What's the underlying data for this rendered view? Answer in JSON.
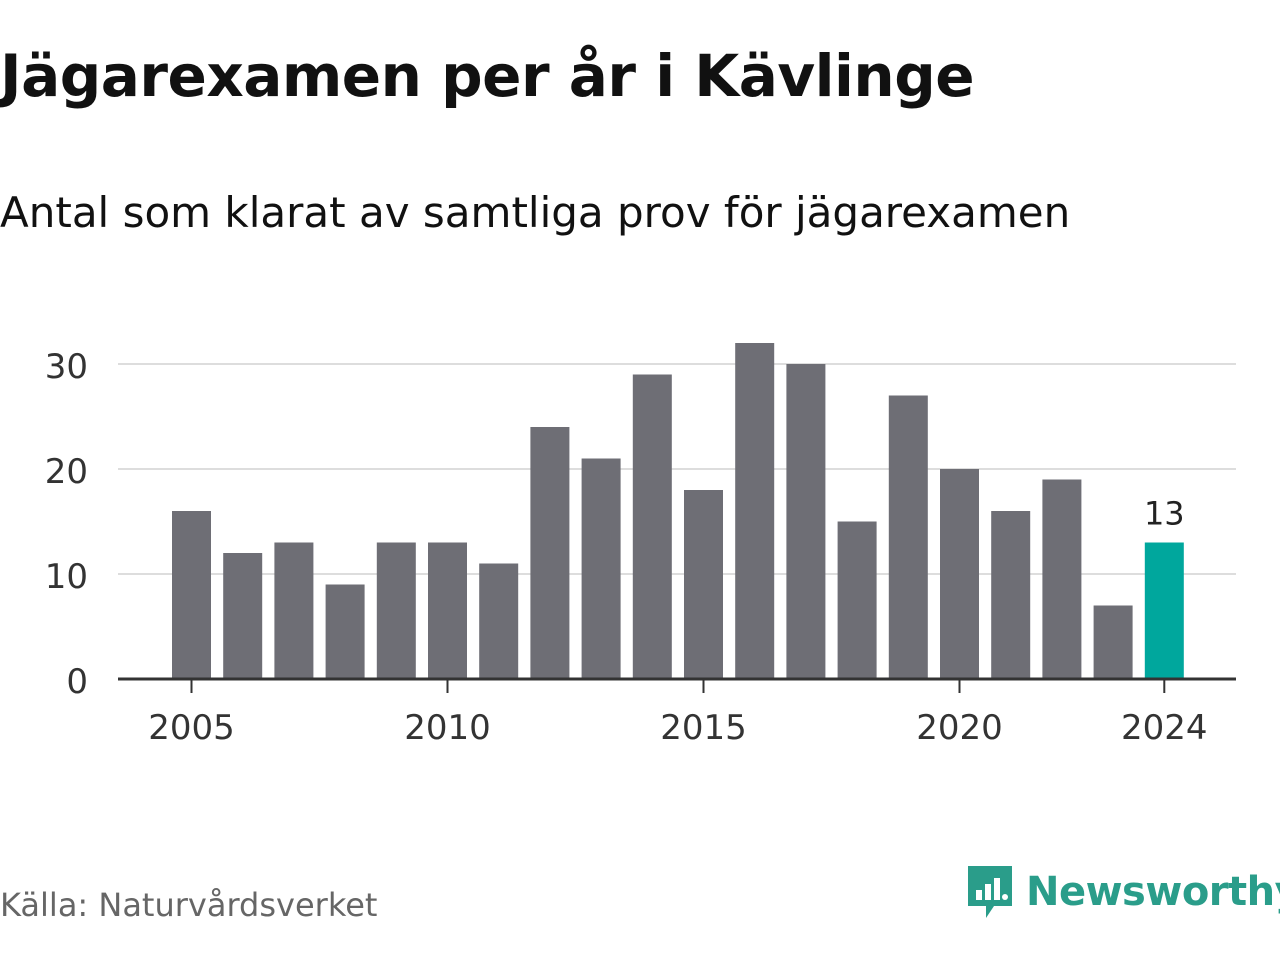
{
  "chart_data": {
    "type": "bar",
    "title": "Jägarexamen per år i Kävlinge",
    "subtitle": "Antal som klarat av samtliga prov för jägarexamen",
    "categories": [
      2005,
      2006,
      2007,
      2008,
      2009,
      2010,
      2011,
      2012,
      2013,
      2014,
      2015,
      2016,
      2017,
      2018,
      2019,
      2020,
      2021,
      2022,
      2023,
      2024
    ],
    "values": [
      16,
      12,
      13,
      9,
      13,
      13,
      11,
      24,
      21,
      29,
      18,
      32,
      30,
      15,
      27,
      20,
      16,
      19,
      7,
      13
    ],
    "x_tick_labels": [
      "2005",
      "2010",
      "2015",
      "2020",
      "2024"
    ],
    "y_ticks": [
      0,
      10,
      20,
      30
    ],
    "ylim": [
      0,
      32
    ],
    "highlight": {
      "category": 2024,
      "label": "13"
    },
    "grid": true,
    "legend": "none",
    "colors": {
      "bar": "#6e6e75",
      "highlight": "#00a79d",
      "grid": "#dddddd",
      "axis": "#333333"
    }
  },
  "source": "Källa: Naturvårdsverket",
  "logo": {
    "text": "Newsworthy",
    "icon": "newsworthy-chart-icon",
    "color": "#2a9d8a"
  }
}
